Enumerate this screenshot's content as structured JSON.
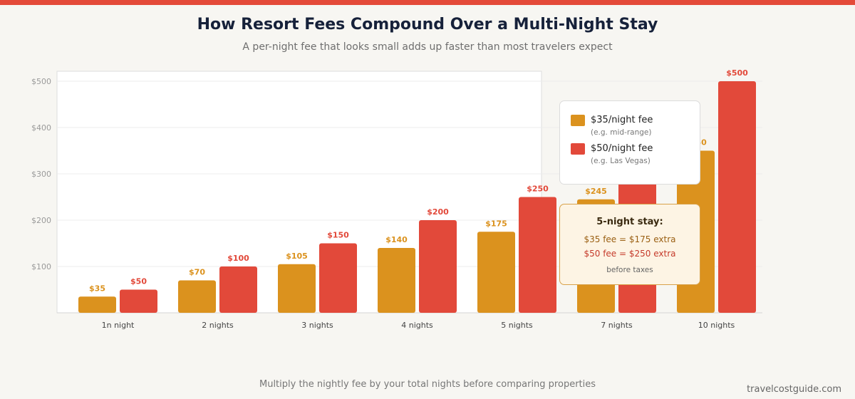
{
  "header": {
    "title": "How Resort Fees Compound Over a Multi-Night Stay",
    "subtitle": "A per-night fee that looks small adds up faster than most travelers expect"
  },
  "colors": {
    "accent": "#e44a39",
    "series_35": "#db921e",
    "series_50": "#e2493a"
  },
  "chart_data": {
    "type": "bar",
    "categories": [
      "1n night",
      "2 nights",
      "3 nights",
      "4 nights",
      "5 nights",
      "7 nights",
      "10 nights"
    ],
    "series": [
      {
        "name": "$35/night fee",
        "note": "(e.g. mid-range)",
        "values": [
          35,
          70,
          105,
          140,
          175,
          245,
          350
        ],
        "data_labels": [
          "$35",
          "$70",
          "$105",
          "$140",
          "$175",
          "$245",
          "$350"
        ]
      },
      {
        "name": "$50/night fee",
        "note": "(e.g. Las Vegas)",
        "values": [
          50,
          100,
          150,
          200,
          250,
          350,
          500
        ],
        "data_labels": [
          "$50",
          "$100",
          "$150",
          "$200",
          "$250",
          "$350",
          "$500"
        ]
      }
    ],
    "ylim": [
      0,
      500
    ],
    "y_ticks": [
      100,
      200,
      300,
      400,
      500
    ],
    "y_tick_labels": [
      "$100",
      "$200",
      "$300",
      "$400",
      "$500"
    ],
    "grid": true,
    "legend_position": "top-right"
  },
  "callout": {
    "title": "5-night stay:",
    "line1": "$35 fee = $175 extra",
    "line2": "$50 fee = $250 extra",
    "note": "before taxes"
  },
  "footer": {
    "note": "Multiply the nightly fee by your total nights before comparing properties",
    "brand": "travelcostguide.com"
  }
}
